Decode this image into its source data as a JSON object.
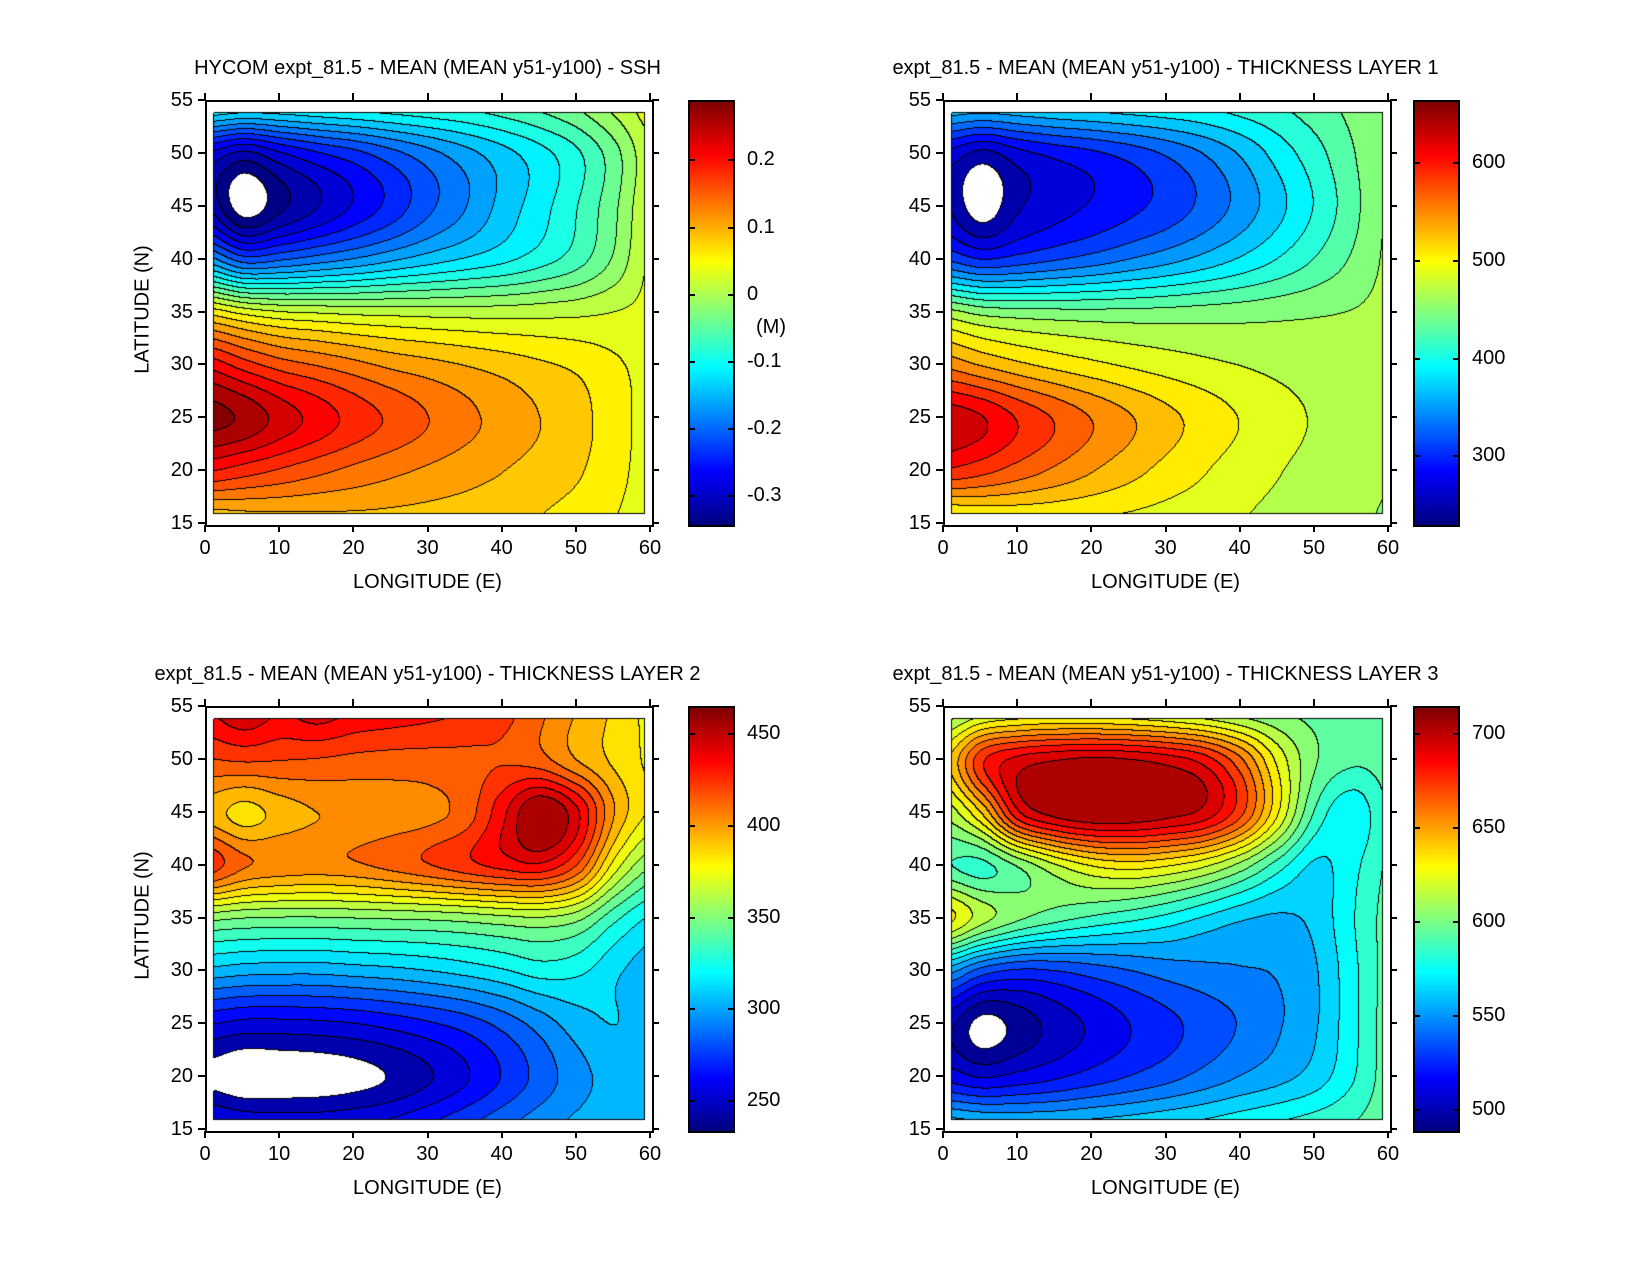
{
  "figure": {
    "background": "#ffffff",
    "line_color": "#000000"
  },
  "chart_data": [
    {
      "type": "contour",
      "title": "HYCOM expt_81.5 - MEAN (MEAN y51-y100) - SSH",
      "xlabel": "LONGITUDE (E)",
      "ylabel": "LATITUDE (N)",
      "xlim": [
        0,
        60
      ],
      "ylim": [
        15,
        55
      ],
      "xticks": [
        0,
        10,
        20,
        30,
        40,
        50,
        60
      ],
      "yticks": [
        15,
        20,
        25,
        30,
        35,
        40,
        45,
        50,
        55
      ],
      "data_domain": {
        "x": [
          1,
          59
        ],
        "y": [
          16,
          54
        ]
      },
      "levels": {
        "min": -0.35,
        "step": 0.025,
        "count": 26
      },
      "caxis": [
        -0.34,
        0.29
      ],
      "colorbar": {
        "ticks": [
          0.2,
          0.1,
          0,
          -0.1,
          -0.2,
          -0.3
        ],
        "labels": [
          "0.2",
          "0.1",
          "0",
          "-0.1",
          "-0.2",
          "-0.3"
        ],
        "unit": "(M)"
      },
      "grid": {
        "lon": [
          0,
          5,
          10,
          15,
          20,
          25,
          30,
          35,
          40,
          45,
          50,
          55,
          60
        ],
        "lat": [
          55,
          50,
          45,
          40,
          35,
          30,
          25,
          20,
          15
        ],
        "values": [
          [
            -0.08,
            -0.09,
            -0.09,
            -0.085,
            -0.08,
            -0.075,
            -0.07,
            -0.065,
            -0.055,
            -0.04,
            -0.02,
            0.01,
            0.04
          ],
          [
            -0.28,
            -0.31,
            -0.28,
            -0.255,
            -0.235,
            -0.21,
            -0.185,
            -0.16,
            -0.135,
            -0.11,
            -0.08,
            -0.035,
            0.02
          ],
          [
            -0.3,
            -0.365,
            -0.33,
            -0.3,
            -0.27,
            -0.24,
            -0.205,
            -0.175,
            -0.14,
            -0.11,
            -0.075,
            -0.03,
            0.025
          ],
          [
            -0.16,
            -0.21,
            -0.2,
            -0.185,
            -0.17,
            -0.152,
            -0.135,
            -0.12,
            -0.105,
            -0.085,
            -0.06,
            -0.02,
            0.03
          ],
          [
            0.07,
            0.045,
            0.03,
            0.025,
            0.02,
            0.018,
            0.016,
            0.015,
            0.015,
            0.017,
            0.02,
            0.026,
            0.032
          ],
          [
            0.22,
            0.19,
            0.165,
            0.15,
            0.135,
            0.12,
            0.11,
            0.1,
            0.09,
            0.08,
            0.07,
            0.055,
            0.04
          ],
          [
            0.285,
            0.27,
            0.24,
            0.215,
            0.19,
            0.17,
            0.15,
            0.132,
            0.115,
            0.1,
            0.085,
            0.06,
            0.042
          ],
          [
            0.2,
            0.185,
            0.17,
            0.155,
            0.142,
            0.13,
            0.12,
            0.11,
            0.1,
            0.09,
            0.078,
            0.058,
            0.04
          ],
          [
            0.07,
            0.08,
            0.085,
            0.088,
            0.09,
            0.09,
            0.088,
            0.085,
            0.08,
            0.073,
            0.063,
            0.05,
            0.038
          ]
        ]
      }
    },
    {
      "type": "contour",
      "title": "expt_81.5 - MEAN (MEAN y51-y100) - THICKNESS LAYER 1",
      "xlabel": "LONGITUDE (E)",
      "ylabel": "",
      "xlim": [
        0,
        60
      ],
      "ylim": [
        15,
        55
      ],
      "xticks": [
        0,
        10,
        20,
        30,
        40,
        50,
        60
      ],
      "yticks": [
        15,
        20,
        25,
        30,
        35,
        40,
        45,
        50,
        55
      ],
      "data_domain": {
        "x": [
          1,
          59
        ],
        "y": [
          16,
          54
        ]
      },
      "levels": {
        "min": 240,
        "step": 20,
        "count": 21
      },
      "caxis": [
        232,
        664
      ],
      "colorbar": {
        "ticks": [
          600,
          500,
          400,
          300
        ],
        "labels": [
          "600",
          "500",
          "400",
          "300"
        ],
        "unit": ""
      },
      "grid": {
        "lon": [
          0,
          5,
          10,
          15,
          20,
          25,
          30,
          35,
          40,
          45,
          50,
          55,
          60
        ],
        "lat": [
          55,
          50,
          45,
          40,
          35,
          30,
          25,
          20,
          15
        ],
        "values": [
          [
            385,
            382,
            385,
            390,
            394,
            398,
            401,
            405,
            412,
            420,
            432,
            446,
            460
          ],
          [
            275,
            252,
            272,
            285,
            295,
            307,
            322,
            340,
            362,
            388,
            412,
            438,
            462
          ],
          [
            262,
            228,
            258,
            272,
            283,
            295,
            308,
            326,
            348,
            374,
            402,
            433,
            463
          ],
          [
            320,
            302,
            310,
            320,
            330,
            342,
            354,
            368,
            384,
            402,
            422,
            443,
            464
          ],
          [
            470,
            455,
            450,
            448,
            447,
            447,
            448,
            450,
            452,
            455,
            458,
            461,
            465
          ],
          [
            556,
            540,
            526,
            515,
            506,
            498,
            491,
            485,
            480,
            475,
            471,
            468,
            464
          ],
          [
            634,
            622,
            598,
            578,
            559,
            542,
            526,
            512,
            499,
            488,
            478,
            470,
            463
          ],
          [
            596,
            585,
            570,
            555,
            540,
            526,
            513,
            501,
            490,
            481,
            473,
            467,
            461
          ],
          [
            482,
            492,
            496,
            497,
            496,
            494,
            490,
            486,
            480,
            474,
            468,
            463,
            458
          ]
        ]
      }
    },
    {
      "type": "contour",
      "title": "expt_81.5 - MEAN (MEAN y51-y100) - THICKNESS LAYER 2",
      "xlabel": "LONGITUDE (E)",
      "ylabel": "LATITUDE (N)",
      "xlim": [
        0,
        60
      ],
      "ylim": [
        15,
        55
      ],
      "xticks": [
        0,
        10,
        20,
        30,
        40,
        50,
        60
      ],
      "yticks": [
        15,
        20,
        25,
        30,
        35,
        40,
        45,
        50,
        55
      ],
      "data_domain": {
        "x": [
          1,
          59
        ],
        "y": [
          16,
          54
        ]
      },
      "levels": {
        "min": 240,
        "step": 10,
        "count": 22
      },
      "caxis": [
        235,
        465
      ],
      "colorbar": {
        "ticks": [
          450,
          400,
          350,
          300,
          250
        ],
        "labels": [
          "450",
          "400",
          "350",
          "300",
          "250"
        ],
        "unit": ""
      },
      "grid": {
        "lon": [
          0,
          5,
          10,
          15,
          20,
          25,
          30,
          35,
          40,
          45,
          50,
          55,
          60
        ],
        "lat": [
          55,
          50,
          45,
          40,
          35,
          30,
          25,
          20,
          15
        ],
        "values": [
          [
            440,
            450,
            441,
            447,
            440,
            437,
            434,
            430,
            424,
            412,
            399,
            388,
            377
          ],
          [
            419,
            421,
            420,
            419,
            417,
            416,
            416,
            417,
            419,
            414,
            400,
            388,
            378
          ],
          [
            396,
            386,
            394,
            400,
            402,
            404,
            407,
            415,
            438,
            462,
            442,
            400,
            378
          ],
          [
            426,
            411,
            407,
            406,
            408,
            413,
            419,
            426,
            433,
            437,
            418,
            375,
            350
          ],
          [
            352,
            349,
            348,
            348,
            349,
            350,
            351,
            353,
            356,
            358,
            352,
            332,
            318
          ],
          [
            306,
            303,
            302,
            302,
            304,
            306,
            309,
            313,
            318,
            324,
            322,
            312,
            304
          ],
          [
            260,
            256,
            256,
            257,
            259,
            263,
            268,
            274,
            283,
            294,
            305,
            310,
            304
          ],
          [
            237,
            231,
            232,
            233,
            236,
            241,
            249,
            259,
            271,
            284,
            296,
            304,
            303
          ],
          [
            266,
            261,
            259,
            259,
            261,
            265,
            272,
            280,
            289,
            297,
            303,
            306,
            306
          ]
        ]
      }
    },
    {
      "type": "contour",
      "title": "expt_81.5 - MEAN (MEAN y51-y100) - THICKNESS LAYER 3",
      "xlabel": "LONGITUDE (E)",
      "ylabel": "",
      "xlim": [
        0,
        60
      ],
      "ylim": [
        15,
        55
      ],
      "xticks": [
        0,
        10,
        20,
        30,
        40,
        50,
        60
      ],
      "yticks": [
        15,
        20,
        25,
        30,
        35,
        40,
        45,
        50,
        55
      ],
      "data_domain": {
        "x": [
          1,
          59
        ],
        "y": [
          16,
          54
        ]
      },
      "levels": {
        "min": 490,
        "step": 10,
        "count": 22
      },
      "caxis": [
        490,
        715
      ],
      "colorbar": {
        "ticks": [
          700,
          650,
          600,
          550,
          500
        ],
        "labels": [
          "700",
          "650",
          "600",
          "550",
          "500"
        ],
        "unit": ""
      },
      "grid": {
        "lon": [
          0,
          5,
          10,
          15,
          20,
          25,
          30,
          35,
          40,
          45,
          50,
          55,
          60
        ],
        "lat": [
          55,
          50,
          45,
          40,
          35,
          30,
          25,
          20,
          15
        ],
        "values": [
          [
            601,
            612,
            617,
            619,
            618,
            616,
            612,
            607,
            602,
            599,
            597,
            596,
            596
          ],
          [
            637,
            678,
            694,
            700,
            703,
            701,
            696,
            686,
            662,
            627,
            601,
            592,
            594
          ],
          [
            612,
            640,
            688,
            704,
            710,
            709,
            704,
            696,
            672,
            630,
            588,
            572,
            591
          ],
          [
            591,
            587,
            601,
            618,
            630,
            634,
            630,
            621,
            605,
            584,
            568,
            577,
            592
          ],
          [
            634,
            614,
            601,
            593,
            587,
            582,
            576,
            568,
            561,
            558,
            563,
            579,
            594
          ],
          [
            554,
            534,
            527,
            529,
            534,
            539,
            544,
            547,
            549,
            551,
            559,
            577,
            594
          ],
          [
            504,
            486,
            494,
            504,
            512,
            520,
            527,
            534,
            541,
            549,
            559,
            577,
            595
          ],
          [
            517,
            510,
            514,
            519,
            525,
            531,
            537,
            544,
            551,
            557,
            565,
            579,
            595
          ],
          [
            571,
            567,
            565,
            565,
            567,
            569,
            572,
            575,
            579,
            583,
            587,
            591,
            596
          ]
        ]
      }
    }
  ]
}
